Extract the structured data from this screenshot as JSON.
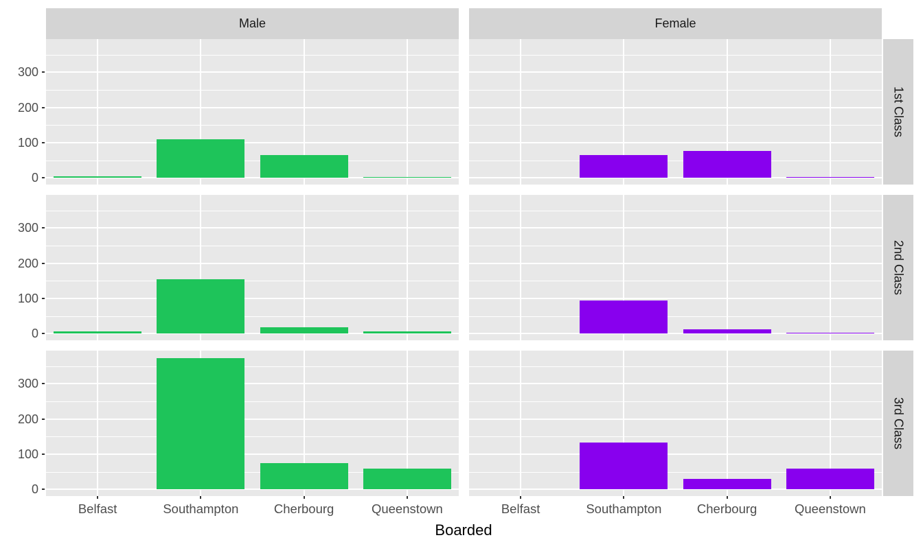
{
  "chart_data": {
    "type": "bar",
    "title": "",
    "xlabel": "Boarded",
    "ylabel": "",
    "categories": [
      "Belfast",
      "Southampton",
      "Cherbourg",
      "Queenstown"
    ],
    "facet_cols": [
      "Male",
      "Female"
    ],
    "facet_rows": [
      "1st Class",
      "2nd Class",
      "3rd Class"
    ],
    "series": [
      {
        "col": "Male",
        "row": "1st Class",
        "values": [
          4,
          109,
          64,
          2
        ]
      },
      {
        "col": "Female",
        "row": "1st Class",
        "values": [
          0,
          64,
          76,
          2
        ]
      },
      {
        "col": "Male",
        "row": "2nd Class",
        "values": [
          6,
          154,
          17,
          5
        ]
      },
      {
        "col": "Female",
        "row": "2nd Class",
        "values": [
          0,
          93,
          11,
          2
        ]
      },
      {
        "col": "Male",
        "row": "3rd Class",
        "values": [
          0,
          373,
          75,
          59
        ]
      },
      {
        "col": "Female",
        "row": "3rd Class",
        "values": [
          0,
          133,
          30,
          59
        ]
      }
    ],
    "yticks": [
      0,
      100,
      200,
      300
    ],
    "ytick_labels": [
      "0",
      "100",
      "200",
      "300"
    ],
    "ylim": [
      0,
      394
    ],
    "grid": "white major and minor horizontal lines (minor at 50-unit steps), white vertical lines at category centers, on gray panel",
    "legend": "none",
    "colors": {
      "Male": "#1ec45a",
      "Female": "#8800ee",
      "panel_bg": "#e8e8e8",
      "strip_bg": "#d4d4d4",
      "tick_text": "#4d4d4d"
    }
  }
}
